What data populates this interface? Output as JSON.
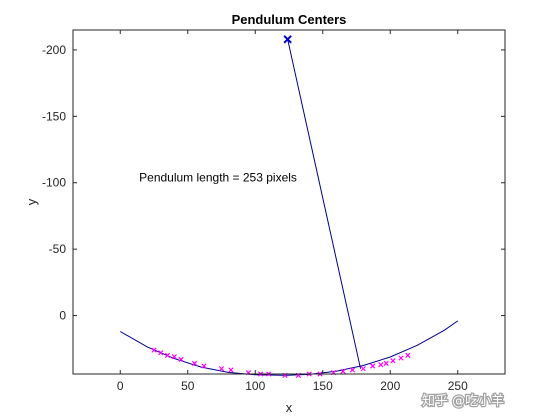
{
  "chart_data": {
    "type": "line",
    "title": "Pendulum Centers",
    "xlabel": "x",
    "ylabel": "y",
    "xlim": [
      -35,
      285
    ],
    "ylim": [
      44,
      -215
    ],
    "y_axis_reversed": true,
    "xticks": [
      0,
      50,
      100,
      150,
      200,
      250
    ],
    "xtick_labels": [
      "0",
      "50",
      "100",
      "150",
      "200",
      "250"
    ],
    "yticks": [
      -200,
      -150,
      -100,
      -50,
      0
    ],
    "ytick_labels": [
      "-200",
      "-150",
      "-100",
      "-50",
      "0"
    ],
    "grid": false,
    "legend": "none",
    "annotation": "Pendulum length = 253 pixels",
    "pivot": {
      "x": 124,
      "y": -208
    },
    "bob": {
      "x": 178,
      "y": 40
    },
    "fitted_arc": {
      "x": [
        0,
        20,
        40,
        60,
        80,
        100,
        120,
        124,
        140,
        160,
        180,
        200,
        220,
        240,
        250
      ],
      "y": [
        12,
        23.6,
        32.4,
        38.8,
        42.8,
        44.6,
        44.9,
        44.9,
        44.3,
        41.9,
        37.6,
        31.2,
        22.4,
        11.1,
        4
      ]
    },
    "centers": {
      "x": [
        25,
        30,
        35,
        40,
        45,
        55,
        62,
        75,
        82,
        95,
        104,
        110,
        122,
        132,
        140,
        148,
        158,
        165,
        172,
        180,
        187,
        193,
        197,
        202,
        208,
        213
      ],
      "y": [
        26,
        28,
        30,
        31,
        33,
        36,
        38,
        40,
        41,
        43,
        44,
        44,
        45,
        45,
        44,
        44,
        43,
        42,
        41,
        40,
        38,
        37,
        36,
        34,
        32,
        30
      ]
    }
  },
  "colors": {
    "line": "#00008B",
    "pivot_marker": "#0000CD",
    "centers": "#FF00FF",
    "axes": "#262626"
  },
  "watermark": {
    "text": "知乎 @吃小羊",
    "icon": "zhihu-logo-icon"
  }
}
